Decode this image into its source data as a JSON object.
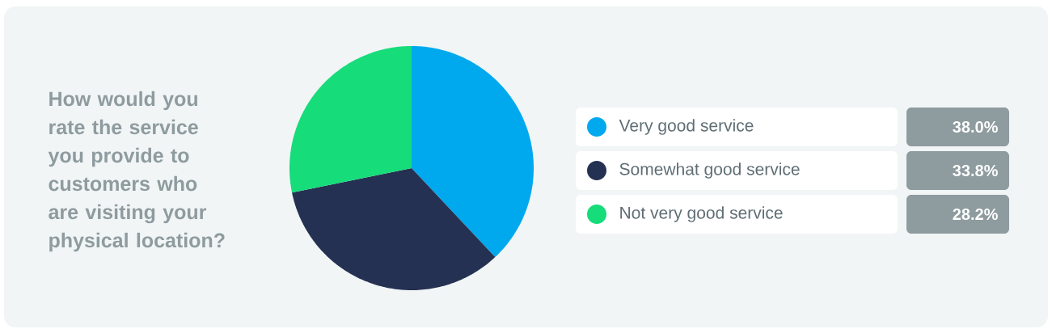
{
  "chart_data": {
    "type": "pie",
    "title": "How would you rate the service you provide to customers who are visiting your physical location?",
    "categories": [
      "Very good service",
      "Somewhat good service",
      "Not very good service"
    ],
    "values": [
      38.0,
      33.8,
      28.2
    ],
    "value_labels": [
      "38.0%",
      "33.8%",
      "28.2%"
    ],
    "colors": [
      "#00a9ee",
      "#253152",
      "#16dc7a"
    ],
    "legend": "right"
  }
}
